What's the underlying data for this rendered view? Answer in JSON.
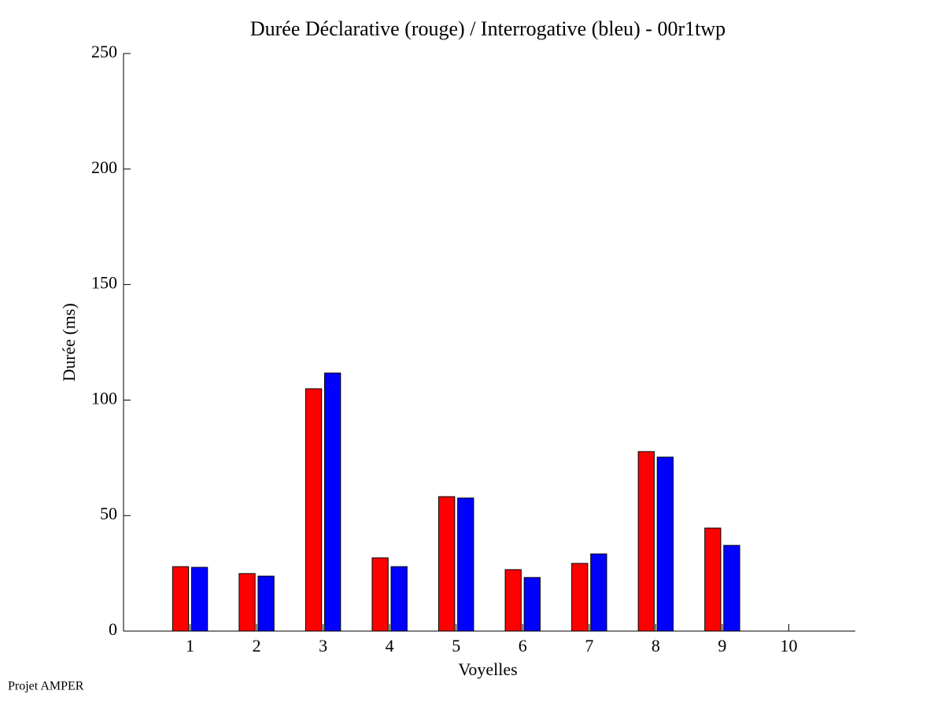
{
  "chart_data": {
    "type": "bar",
    "title": "Durée Déclarative (rouge) / Interrogative (bleu) - 00r1twp",
    "x_label": "Voyelles",
    "y_label": "Durée (ms)",
    "annotation": "Projet AMPER",
    "x": [
      1,
      2,
      3,
      4,
      5,
      6,
      7,
      8,
      9,
      10
    ],
    "series": [
      {
        "name": "Déclarative",
        "color": "#ff0000",
        "values": [
          27.9,
          24.9,
          104.9,
          31.7,
          58.2,
          26.6,
          29.3,
          77.7,
          44.6,
          null
        ]
      },
      {
        "name": "Interrogative",
        "color": "#0000ff",
        "values": [
          27.6,
          23.8,
          111.7,
          27.9,
          57.6,
          23.2,
          33.4,
          75.3,
          37.1,
          null
        ]
      }
    ],
    "xlim": [
      0,
      11
    ],
    "xticks": [
      1,
      2,
      3,
      4,
      5,
      6,
      7,
      8,
      9,
      10
    ],
    "ylim": [
      0,
      250
    ],
    "yticks": [
      0,
      50,
      100,
      150,
      200,
      250
    ],
    "grid": false
  }
}
